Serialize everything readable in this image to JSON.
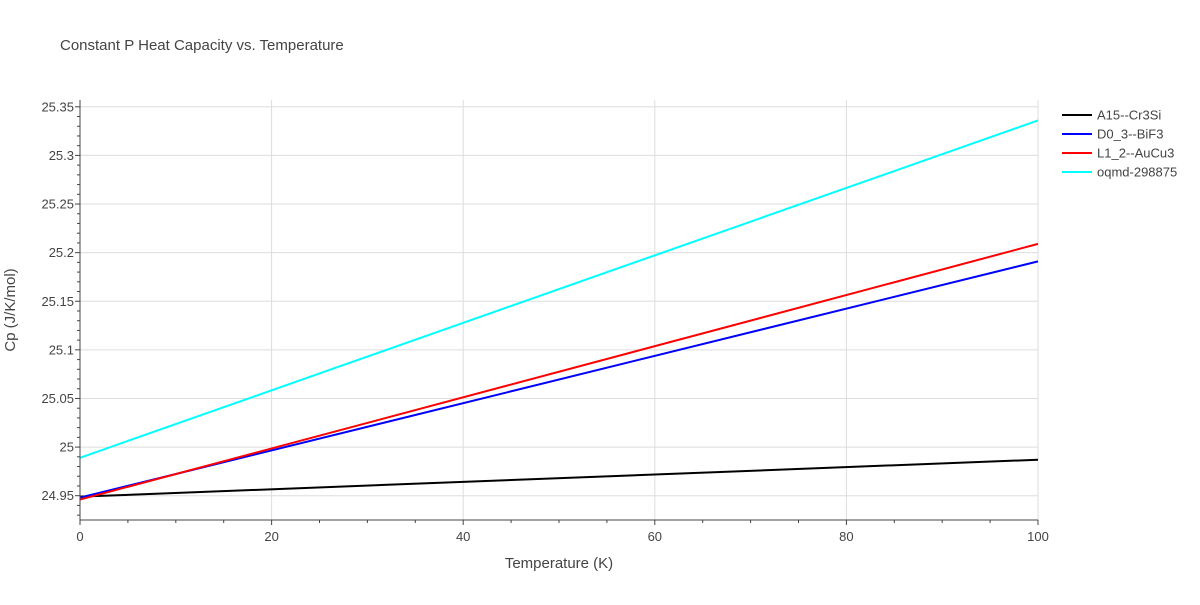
{
  "chart_data": {
    "type": "line",
    "title": "Constant P Heat Capacity vs. Temperature",
    "xlabel": "Temperature (K)",
    "ylabel": "Cp (J/K/mol)",
    "xlim": [
      0,
      100
    ],
    "ylim": [
      24.925,
      25.357
    ],
    "x_ticks": [
      0,
      20,
      40,
      60,
      80,
      100
    ],
    "x_tick_labels": [
      "0",
      "20",
      "40",
      "60",
      "80",
      "100"
    ],
    "y_ticks": [
      24.95,
      25.0,
      25.05,
      25.1,
      25.15,
      25.2,
      25.25,
      25.3,
      25.35
    ],
    "y_tick_labels": [
      "24.95",
      "25",
      "25.05",
      "25.1",
      "25.15",
      "25.2",
      "25.25",
      "25.3",
      "25.35"
    ],
    "grid": true,
    "legend_position": "top-right",
    "series": [
      {
        "name": "A15--Cr3Si",
        "color": "#000000",
        "x": [
          0,
          100
        ],
        "y": [
          24.949,
          24.987
        ]
      },
      {
        "name": "D0_3--BiF3",
        "color": "#0000ff",
        "x": [
          0,
          100
        ],
        "y": [
          24.948,
          25.191
        ]
      },
      {
        "name": "L1_2--AuCu3",
        "color": "#ff0000",
        "x": [
          0,
          100
        ],
        "y": [
          24.946,
          25.209
        ]
      },
      {
        "name": "oqmd-298875",
        "color": "#00ffff",
        "x": [
          0,
          100
        ],
        "y": [
          24.989,
          25.336
        ]
      }
    ]
  }
}
